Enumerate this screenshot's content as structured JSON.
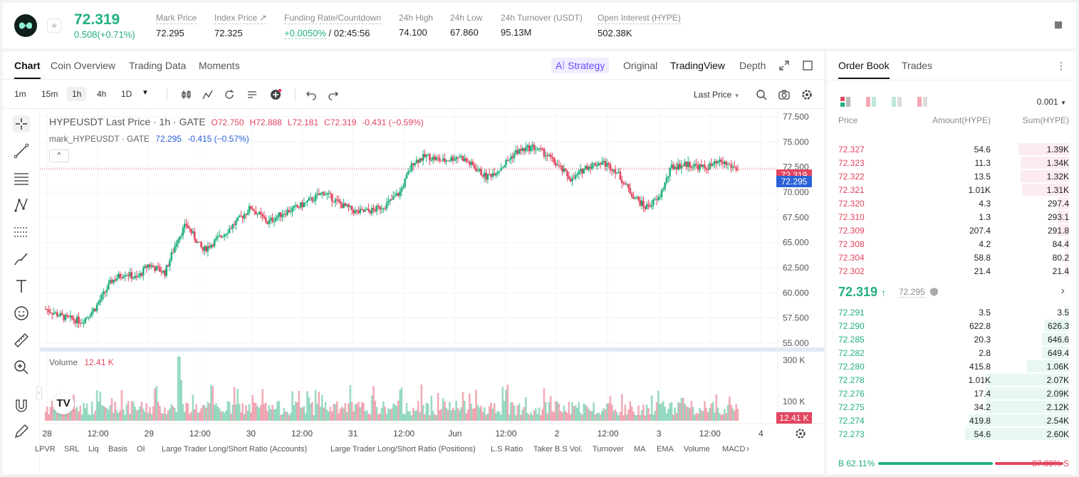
{
  "header": {
    "last_price": "72.319",
    "change": "0.508(+0.71%)",
    "stats": [
      {
        "label": "Mark Price",
        "value": "72.295"
      },
      {
        "label": "Index Price ↗",
        "value": "72.325"
      },
      {
        "label": "Funding Rate/Countdown",
        "value_green": "+0.0050%",
        "value": " / 02:45:56"
      },
      {
        "label": "24h High",
        "value": "74.100"
      },
      {
        "label": "24h Low",
        "value": "67.860"
      },
      {
        "label": "24h Turnover (USDT)",
        "value": "95.13M"
      },
      {
        "label": "Open Interest (HYPE)",
        "value": "502.38K"
      }
    ]
  },
  "chart_tabs": [
    "Chart",
    "Coin Overview",
    "Trading Data",
    "Moments"
  ],
  "view_tabs": {
    "strategy": "A⁞ Strategy",
    "original": "Original",
    "tradingview": "TradingView",
    "depth": "Depth"
  },
  "timeframes": [
    "1m",
    "15m",
    "1h",
    "4h",
    "1D"
  ],
  "last_price_menu": "Last Price",
  "legend": {
    "line1_title": "HYPEUSDT Last Price · 1h · GATE",
    "o": "O72.750",
    "h": "H72.888",
    "l": "L72.181",
    "c": "C72.319",
    "chg": "-0.431 (−0.59%)",
    "line2_title": "mark_HYPEUSDT · GATE",
    "mark_val": "72.295",
    "mark_chg": "-0.415 (−0.57%)",
    "volume_label": "Volume",
    "volume_val": "12.41 K"
  },
  "price_badges": {
    "last": "72.319",
    "mark": "72.295",
    "volume": "12.41 K"
  },
  "chart_data": {
    "type": "candlestick",
    "y_ticks": [
      "77.500",
      "75.000",
      "72.500",
      "70.000",
      "67.500",
      "65.000",
      "62.500",
      "60.000",
      "57.500",
      "55.000"
    ],
    "ylim": [
      55.0,
      77.5
    ],
    "volume_ticks": [
      "300 K",
      "100 K"
    ],
    "x_ticks": [
      "28",
      "12:00",
      "29",
      "12:00",
      "30",
      "12:00",
      "31",
      "12:00",
      "Jun",
      "12:00",
      "2",
      "12:00",
      "3",
      "12:00",
      "4"
    ],
    "anchors": [
      [
        0,
        58.4
      ],
      [
        12,
        57.5
      ],
      [
        22,
        57.2
      ],
      [
        30,
        58.5
      ],
      [
        40,
        61.2
      ],
      [
        48,
        62.0
      ],
      [
        55,
        61.4
      ],
      [
        62,
        62.8
      ],
      [
        72,
        62.0
      ],
      [
        80,
        65.5
      ],
      [
        85,
        66.8
      ],
      [
        95,
        64.2
      ],
      [
        105,
        65.5
      ],
      [
        115,
        67.0
      ],
      [
        124,
        68.5
      ],
      [
        134,
        67.0
      ],
      [
        144,
        68.0
      ],
      [
        152,
        68.5
      ],
      [
        160,
        69.2
      ],
      [
        168,
        70.0
      ],
      [
        178,
        68.8
      ],
      [
        188,
        68.0
      ],
      [
        198,
        68.2
      ],
      [
        206,
        68.8
      ],
      [
        214,
        70.0
      ],
      [
        222,
        73.0
      ],
      [
        230,
        73.6
      ],
      [
        240,
        73.1
      ],
      [
        250,
        73.6
      ],
      [
        258,
        72.6
      ],
      [
        266,
        71.5
      ],
      [
        274,
        72.3
      ],
      [
        284,
        74.0
      ],
      [
        294,
        74.5
      ],
      [
        302,
        73.8
      ],
      [
        310,
        72.5
      ],
      [
        318,
        71.2
      ],
      [
        326,
        72.5
      ],
      [
        336,
        73.0
      ],
      [
        344,
        72.2
      ],
      [
        354,
        69.8
      ],
      [
        362,
        68.5
      ],
      [
        370,
        69.3
      ],
      [
        378,
        72.5
      ],
      [
        388,
        72.8
      ],
      [
        398,
        72.4
      ],
      [
        408,
        73.0
      ],
      [
        418,
        72.3
      ]
    ]
  },
  "indicators": [
    "LPVR",
    "SRL",
    "Liq",
    "Basis",
    "OI",
    "Large Trader Long/Short Ratio (Accounts)",
    "Large Trader Long/Short Ratio (Positions)",
    "L.S Ratio",
    "Taker B.S Vol.",
    "Turnover",
    "MA",
    "EMA",
    "Volume",
    "MACD"
  ],
  "orderbook": {
    "tabs": [
      "Order Book",
      "Trades"
    ],
    "precision": "0.001",
    "headers": [
      "Price",
      "Amount(HYPE)",
      "Sum(HYPE)"
    ],
    "asks": [
      {
        "price": "72.327",
        "amount": "54.6",
        "sum": "1.39K",
        "frac": 0.3
      },
      {
        "price": "72.323",
        "amount": "11.3",
        "sum": "1.34K",
        "frac": 0.29
      },
      {
        "price": "72.322",
        "amount": "13.5",
        "sum": "1.32K",
        "frac": 0.29
      },
      {
        "price": "72.321",
        "amount": "1.01K",
        "sum": "1.31K",
        "frac": 0.28
      },
      {
        "price": "72.320",
        "amount": "4.3",
        "sum": "297.4",
        "frac": 0.07
      },
      {
        "price": "72.310",
        "amount": "1.3",
        "sum": "293.1",
        "frac": 0.07
      },
      {
        "price": "72.309",
        "amount": "207.4",
        "sum": "291.8",
        "frac": 0.07
      },
      {
        "price": "72.308",
        "amount": "4.2",
        "sum": "84.4",
        "frac": 0.02
      },
      {
        "price": "72.304",
        "amount": "58.8",
        "sum": "80.2",
        "frac": 0.02
      },
      {
        "price": "72.302",
        "amount": "21.4",
        "sum": "21.4",
        "frac": 0.01
      }
    ],
    "mid_price": "72.319",
    "mid_arrow": "↑",
    "mid_mark": "72.295",
    "bids": [
      {
        "price": "72.291",
        "amount": "3.5",
        "sum": "3.5",
        "frac": 0.01
      },
      {
        "price": "72.290",
        "amount": "622.8",
        "sum": "626.3",
        "frac": 0.15
      },
      {
        "price": "72.285",
        "amount": "20.3",
        "sum": "646.6",
        "frac": 0.16
      },
      {
        "price": "72.282",
        "amount": "2.8",
        "sum": "649.4",
        "frac": 0.16
      },
      {
        "price": "72.280",
        "amount": "415.8",
        "sum": "1.06K",
        "frac": 0.25
      },
      {
        "price": "72.278",
        "amount": "1.01K",
        "sum": "2.07K",
        "frac": 0.49
      },
      {
        "price": "72.276",
        "amount": "17.4",
        "sum": "2.09K",
        "frac": 0.5
      },
      {
        "price": "72.275",
        "amount": "34.2",
        "sum": "2.12K",
        "frac": 0.5
      },
      {
        "price": "72.274",
        "amount": "419.8",
        "sum": "2.54K",
        "frac": 0.6
      },
      {
        "price": "72.273",
        "amount": "54.6",
        "sum": "2.60K",
        "frac": 0.62
      }
    ],
    "buy_ratio": "B 62.11%",
    "sell_ratio": "37.89% S",
    "buy_frac": 0.6211
  },
  "colors": {
    "up": "#22b07d",
    "down": "#e2455f",
    "mark": "#2b62d9"
  }
}
